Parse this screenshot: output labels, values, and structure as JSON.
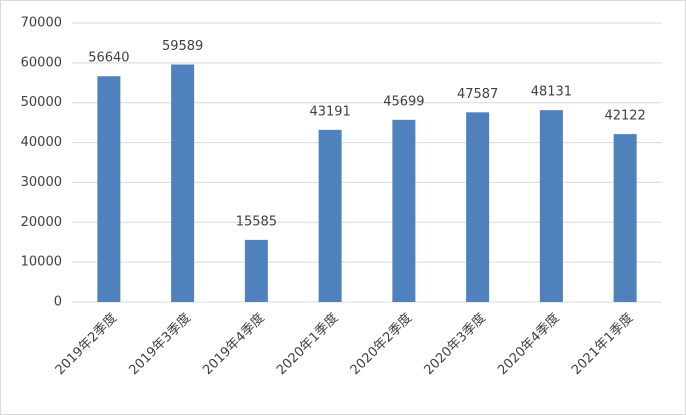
{
  "chart_data": {
    "type": "bar",
    "categories": [
      "2019年2季度",
      "2019年3季度",
      "2019年4季度",
      "2020年1季度",
      "2020年2季度",
      "2020年3季度",
      "2020年4季度",
      "2021年1季度"
    ],
    "values": [
      56640,
      59589,
      15585,
      43191,
      45699,
      47587,
      48131,
      42122
    ],
    "color": "#4f81bd",
    "ylim": [
      0,
      70000
    ],
    "yticks": [
      0,
      10000,
      20000,
      30000,
      40000,
      50000,
      60000,
      70000
    ],
    "grid": true
  }
}
